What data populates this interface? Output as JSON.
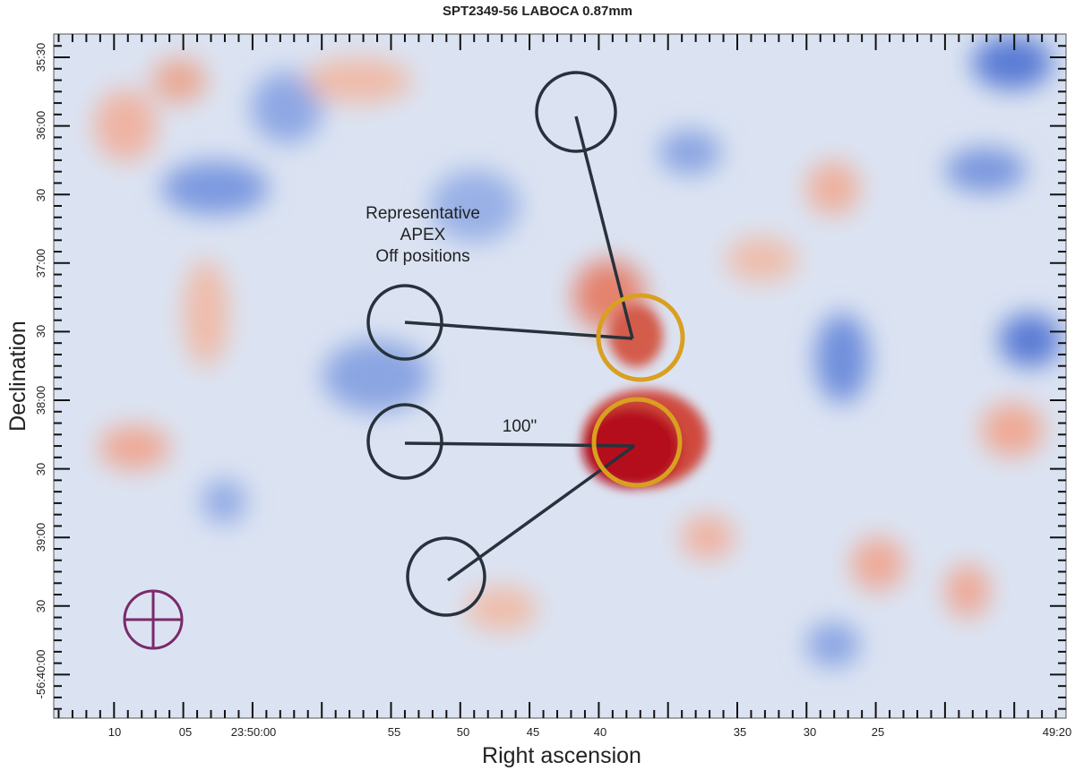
{
  "title": "SPT2349-56 LABOCA 0.87mm",
  "x_axis": {
    "label": "Right ascension",
    "ticks": [
      "10",
      "05",
      "23:50:00",
      "55",
      "50",
      "45",
      "40",
      "35",
      "30",
      "25",
      "49:20"
    ]
  },
  "y_axis": {
    "label": "Declination",
    "ticks": [
      "35:30",
      "36:00",
      "30",
      "37:00",
      "30",
      "38:00",
      "30",
      "39:00",
      "30",
      "-56:40:00"
    ]
  },
  "annotations": {
    "off_positions": [
      "Representative",
      "APEX",
      "Off positions"
    ],
    "scale": "100\""
  }
}
